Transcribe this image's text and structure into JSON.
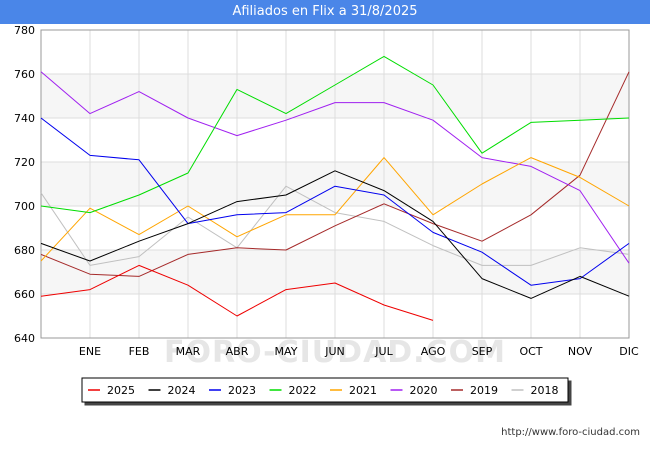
{
  "title": "Afiliados en Flix a 31/8/2025",
  "footer_url": "http://www.foro-ciudad.com",
  "watermark": "FORO-CIUDAD.COM",
  "chart_data": {
    "type": "line",
    "title": "Afiliados en Flix a 31/8/2025",
    "xlabel": "",
    "ylabel": "",
    "categories": [
      "",
      "ENE",
      "FEB",
      "MAR",
      "ABR",
      "MAY",
      "JUN",
      "JUL",
      "AGO",
      "SEP",
      "OCT",
      "NOV",
      "DIC"
    ],
    "ylim": [
      640,
      780
    ],
    "yticks": [
      640,
      660,
      680,
      700,
      720,
      740,
      760,
      780
    ],
    "grid": true,
    "legend_position": "bottom",
    "series": [
      {
        "name": "2025",
        "color": "#ee0000",
        "values": [
          659,
          662,
          673,
          664,
          650,
          662,
          665,
          655,
          648,
          null,
          null,
          null,
          null
        ]
      },
      {
        "name": "2024",
        "color": "#000000",
        "values": [
          683,
          675,
          684,
          692,
          702,
          705,
          716,
          707,
          693,
          667,
          658,
          668,
          659
        ]
      },
      {
        "name": "2023",
        "color": "#0000ee",
        "values": [
          740,
          723,
          721,
          692,
          696,
          697,
          709,
          705,
          688,
          679,
          664,
          667,
          683
        ]
      },
      {
        "name": "2022",
        "color": "#00dd00",
        "values": [
          700,
          697,
          705,
          715,
          753,
          742,
          755,
          768,
          755,
          724,
          738,
          739,
          740
        ]
      },
      {
        "name": "2021",
        "color": "#ffa500",
        "values": [
          675,
          699,
          687,
          700,
          686,
          696,
          696,
          722,
          696,
          710,
          722,
          713,
          700
        ]
      },
      {
        "name": "2020",
        "color": "#a020f0",
        "values": [
          761,
          742,
          752,
          740,
          732,
          739,
          747,
          747,
          739,
          722,
          718,
          707,
          674
        ]
      },
      {
        "name": "2019",
        "color": "#a52a2a",
        "values": [
          678,
          669,
          668,
          678,
          681,
          680,
          691,
          701,
          692,
          684,
          696,
          714,
          761
        ]
      },
      {
        "name": "2018",
        "color": "#c0c0c0",
        "values": [
          706,
          673,
          677,
          695,
          681,
          709,
          697,
          693,
          682,
          673,
          673,
          681,
          678
        ]
      }
    ]
  }
}
